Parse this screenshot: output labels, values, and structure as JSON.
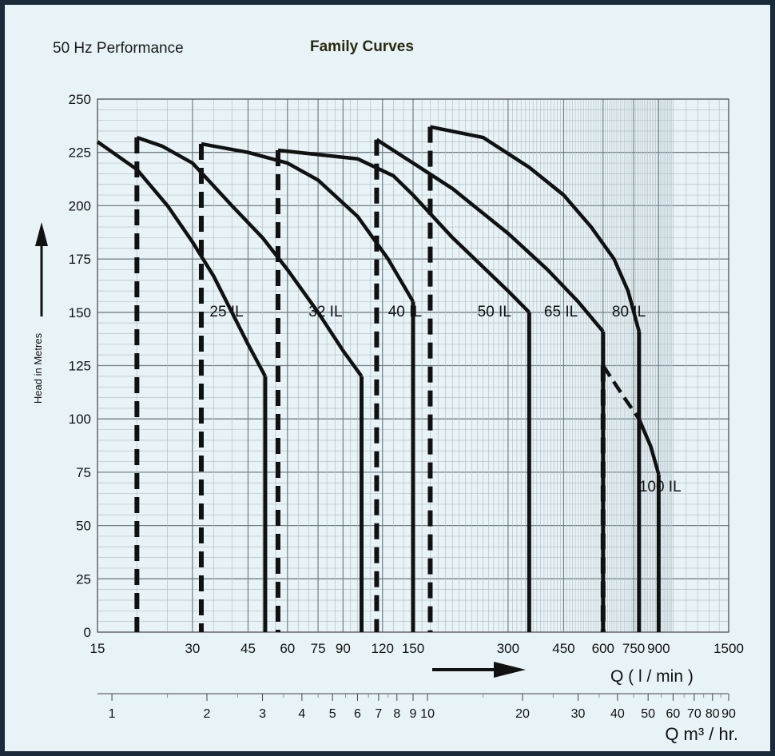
{
  "header": {
    "performance_label": "50 Hz  Performance",
    "family_label": "Family Curves"
  },
  "chart_data": {
    "type": "line",
    "title": "Family Curves",
    "subtitle": "50 Hz  Performance",
    "ylabel": "Head in Metres",
    "xlabel": "Q    ( l / min )",
    "x2label": "Q m³ / hr.",
    "x_scale": "log",
    "ylim": [
      0,
      250
    ],
    "xlim": [
      15,
      1500
    ],
    "grid": true,
    "y_ticks": [
      0,
      25,
      50,
      75,
      100,
      125,
      150,
      175,
      200,
      225,
      250
    ],
    "x_ticks": [
      15,
      30,
      45,
      60,
      75,
      90,
      120,
      150,
      300,
      450,
      600,
      750,
      900,
      1500
    ],
    "x2_ticks": [
      {
        "v": 1,
        "label": "1"
      },
      {
        "v": 2,
        "label": "2"
      },
      {
        "v": 3,
        "label": "3"
      },
      {
        "v": 4,
        "label": "4"
      },
      {
        "v": 5,
        "label": "5"
      },
      {
        "v": 6,
        "label": "6"
      },
      {
        "v": 7,
        "label": "7"
      },
      {
        "v": 8,
        "label": "8"
      },
      {
        "v": 9,
        "label": "9"
      },
      {
        "v": 10,
        "label": "10"
      },
      {
        "v": 20,
        "label": "20"
      },
      {
        "v": 30,
        "label": "30"
      },
      {
        "v": 40,
        "label": "40"
      },
      {
        "v": 50,
        "label": "50"
      },
      {
        "v": 60,
        "label": "60"
      },
      {
        "v": 70,
        "label": "70"
      },
      {
        "v": 80,
        "label": "80"
      },
      {
        "v": 90,
        "label": "90"
      }
    ],
    "series": [
      {
        "name": "25 IL",
        "min_flow": 20,
        "points": [
          [
            15,
            230
          ],
          [
            20,
            217
          ],
          [
            25,
            200
          ],
          [
            30,
            183
          ],
          [
            35,
            167
          ],
          [
            40,
            150
          ],
          [
            45,
            135
          ],
          [
            51,
            120
          ]
        ]
      },
      {
        "name": "32 IL",
        "min_flow": 20,
        "points": [
          [
            20,
            232
          ],
          [
            24,
            228
          ],
          [
            30,
            220
          ],
          [
            40,
            200
          ],
          [
            50,
            185
          ],
          [
            60,
            170
          ],
          [
            75,
            150
          ],
          [
            90,
            132
          ],
          [
            103,
            120
          ]
        ]
      },
      {
        "name": "40 IL",
        "min_flow": 32,
        "points": [
          [
            32,
            229
          ],
          [
            45,
            225
          ],
          [
            60,
            220
          ],
          [
            75,
            212
          ],
          [
            100,
            195
          ],
          [
            125,
            175
          ],
          [
            150,
            155
          ]
        ]
      },
      {
        "name": "50 IL",
        "min_flow": 56,
        "points": [
          [
            56,
            226
          ],
          [
            100,
            222
          ],
          [
            130,
            214
          ],
          [
            150,
            205
          ],
          [
            200,
            185
          ],
          [
            300,
            160
          ],
          [
            350,
            150
          ]
        ]
      },
      {
        "name": "65 IL",
        "min_flow": 115,
        "points": [
          [
            115,
            231
          ],
          [
            150,
            220
          ],
          [
            200,
            208
          ],
          [
            300,
            187
          ],
          [
            400,
            170
          ],
          [
            500,
            155
          ],
          [
            600,
            141
          ]
        ]
      },
      {
        "name": "80 IL",
        "min_flow": 170,
        "points": [
          [
            170,
            237
          ],
          [
            250,
            232
          ],
          [
            350,
            218
          ],
          [
            450,
            205
          ],
          [
            550,
            190
          ],
          [
            650,
            175
          ],
          [
            720,
            160
          ],
          [
            780,
            141
          ]
        ]
      },
      {
        "name": "100 IL",
        "min_flow": 600,
        "points": [
          [
            600,
            125
          ],
          [
            700,
            110
          ],
          [
            780,
            100
          ],
          [
            850,
            87
          ],
          [
            900,
            74
          ]
        ]
      }
    ],
    "annotations": [
      "25 IL",
      "32 IL",
      "40 IL",
      "50 IL",
      "65 IL",
      "80 IL",
      "100 IL"
    ]
  }
}
